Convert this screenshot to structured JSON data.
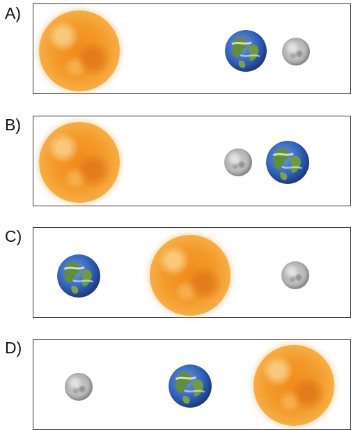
{
  "options": [
    {
      "label": "A)",
      "order": [
        "sun",
        "earth",
        "moon"
      ]
    },
    {
      "label": "B)",
      "order": [
        "sun",
        "moon",
        "earth"
      ]
    },
    {
      "label": "C)",
      "order": [
        "earth",
        "sun",
        "moon"
      ]
    },
    {
      "label": "D)",
      "order": [
        "moon",
        "earth",
        "sun"
      ]
    }
  ],
  "colors": {
    "sun": "#f39a2a",
    "earth_ocean": "#2f5fb8",
    "earth_land": "#5f8f3a",
    "moon": "#b4b4b4",
    "frame": "#333333"
  },
  "icons": {
    "sun": "sun-icon",
    "earth": "earth-icon",
    "moon": "moon-icon"
  }
}
